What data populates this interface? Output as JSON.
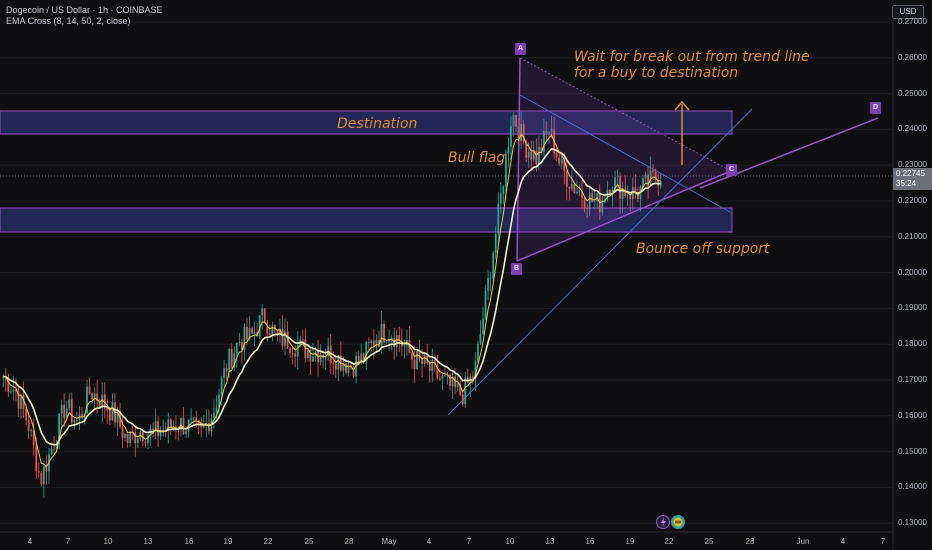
{
  "legend": {
    "symbol": "Dogecoin / US Dollar · 1h · COINBASE",
    "indicator": "EMA Cross (8, 14, 50, 2, close)"
  },
  "currency_button": "USD",
  "price_badge": {
    "price": "0.22745",
    "countdown": "35:24"
  },
  "annotations": {
    "headline": "Wait for break out from trend line\nfor a buy to destination",
    "destination": "Destination",
    "bull_flag": "Bull flag",
    "support": "Bounce off support"
  },
  "points": [
    "A",
    "B",
    "C",
    "D"
  ],
  "y_axis": [
    "0.27000",
    "0.26000",
    "0.25000",
    "0.24000",
    "0.23000",
    "0.22000",
    "0.21000",
    "0.20000",
    "0.19000",
    "0.18000",
    "0.17000",
    "0.16000",
    "0.15000",
    "0.14000",
    "0.13000"
  ],
  "x_axis": [
    "4",
    "7",
    "10",
    "13",
    "16",
    "19",
    "22",
    "25",
    "28",
    "May",
    "4",
    "7",
    "10",
    "13",
    "16",
    "19",
    "22",
    "25",
    "28",
    "Jun",
    "4",
    "7"
  ],
  "colors": {
    "background": "#0f0f12",
    "up": "#26a69a",
    "down": "#ef5350",
    "ema_fast": "#f5d76e",
    "ema_slow": "#f0f0c8",
    "zone": "#2a2f6b",
    "zone_border": "#9c4dcc",
    "annotation": "#e08a2c",
    "trendline": "#3a6fd8",
    "pattern": "#8e44ad"
  },
  "chart_data": {
    "type": "candlestick",
    "title": "Dogecoin / US Dollar · 1h · COINBASE",
    "ylim": [
      0.13,
      0.27
    ],
    "zones": [
      {
        "name": "Destination",
        "from": 0.2385,
        "to": 0.2445
      },
      {
        "name": "Support",
        "from": 0.2115,
        "to": 0.2185
      }
    ],
    "pattern_points": {
      "A": 0.2595,
      "B": 0.2035,
      "C": 0.2285,
      "D": 0.2445
    },
    "last_price": 0.22745,
    "series": [
      {
        "name": "close",
        "values": [
          0.171,
          0.167,
          0.158,
          0.142,
          0.152,
          0.163,
          0.158,
          0.167,
          0.164,
          0.16,
          0.153,
          0.156,
          0.155,
          0.156,
          0.158,
          0.157,
          0.155,
          0.162,
          0.174,
          0.181,
          0.182,
          0.188,
          0.182,
          0.181,
          0.179,
          0.178,
          0.178,
          0.176,
          0.174,
          0.176,
          0.182,
          0.184,
          0.181,
          0.176,
          0.174,
          0.171,
          0.168,
          0.166,
          0.172,
          0.195,
          0.218,
          0.245,
          0.236,
          0.232,
          0.24,
          0.229,
          0.224,
          0.221,
          0.219,
          0.226,
          0.223,
          0.222,
          0.225,
          0.2275
        ]
      }
    ]
  }
}
